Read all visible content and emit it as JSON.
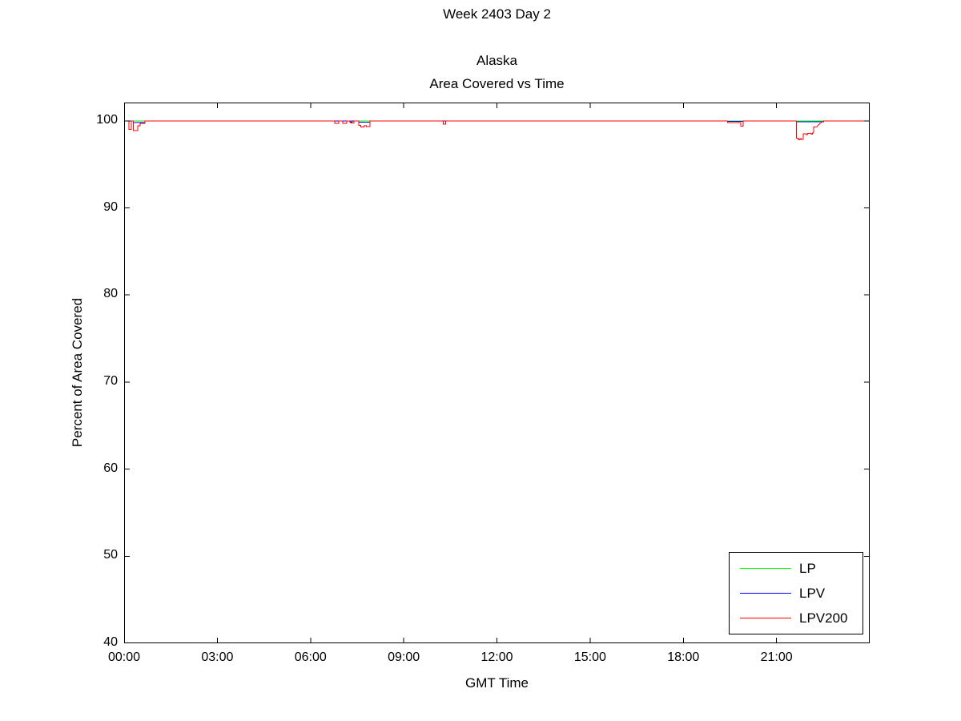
{
  "figure": {
    "title": "Week 2403 Day 2",
    "subtitle_line1": "Alaska",
    "subtitle_line2": "Area Covered vs Time",
    "xlabel": "GMT Time",
    "ylabel": "Percent of Area Covered"
  },
  "chart_data": {
    "type": "line",
    "title": "Week 2403 Day 2 — Alaska — Area Covered vs Time",
    "xlabel": "GMT Time",
    "ylabel": "Percent of Area Covered",
    "x_unit": "hours_gmt",
    "xlim": [
      0,
      24
    ],
    "ylim": [
      40,
      102.1
    ],
    "grid": false,
    "background": "#ffffff",
    "axis_color": "#000000",
    "legend_position": "bottom-right-inside",
    "x_ticks": [
      {
        "h": 0,
        "label": "00:00"
      },
      {
        "h": 3,
        "label": "03:00"
      },
      {
        "h": 6,
        "label": "06:00"
      },
      {
        "h": 9,
        "label": "09:00"
      },
      {
        "h": 12,
        "label": "12:00"
      },
      {
        "h": 15,
        "label": "15:00"
      },
      {
        "h": 18,
        "label": "18:00"
      },
      {
        "h": 21,
        "label": "21:00"
      }
    ],
    "y_ticks": [
      {
        "v": 40,
        "label": "40"
      },
      {
        "v": 50,
        "label": "50"
      },
      {
        "v": 60,
        "label": "60"
      },
      {
        "v": 70,
        "label": "70"
      },
      {
        "v": 80,
        "label": "80"
      },
      {
        "v": 90,
        "label": "90"
      },
      {
        "v": 100,
        "label": "100"
      }
    ],
    "series": [
      {
        "name": "LP",
        "color": "#00ff00",
        "points": [
          [
            0,
            100
          ],
          [
            24,
            100
          ]
        ]
      },
      {
        "name": "LPV",
        "color": "#0000ff",
        "points": [
          [
            0,
            100
          ],
          [
            0.29,
            100
          ],
          [
            0.29,
            99.8
          ],
          [
            0.67,
            99.8
          ],
          [
            0.67,
            100
          ],
          [
            7.27,
            100
          ],
          [
            7.27,
            99.85
          ],
          [
            7.33,
            99.85
          ],
          [
            7.33,
            100
          ],
          [
            7.55,
            100
          ],
          [
            7.55,
            99.85
          ],
          [
            7.92,
            99.85
          ],
          [
            7.92,
            100
          ],
          [
            19.43,
            100
          ],
          [
            19.43,
            99.92
          ],
          [
            19.93,
            99.92
          ],
          [
            19.93,
            100
          ],
          [
            21.64,
            100
          ],
          [
            21.64,
            99.9
          ],
          [
            22.52,
            99.9
          ],
          [
            22.52,
            100
          ],
          [
            24,
            100
          ]
        ]
      },
      {
        "name": "LPV200",
        "color": "#ff0000",
        "points": [
          [
            0,
            100
          ],
          [
            0.15,
            100
          ],
          [
            0.15,
            99.0
          ],
          [
            0.23,
            99.0
          ],
          [
            0.23,
            100
          ],
          [
            0.29,
            100
          ],
          [
            0.29,
            98.9
          ],
          [
            0.44,
            98.9
          ],
          [
            0.44,
            99.45
          ],
          [
            0.52,
            99.45
          ],
          [
            0.52,
            99.7
          ],
          [
            0.67,
            99.7
          ],
          [
            0.67,
            100
          ],
          [
            6.78,
            100
          ],
          [
            6.78,
            99.7
          ],
          [
            6.91,
            99.7
          ],
          [
            6.91,
            100
          ],
          [
            7.04,
            100
          ],
          [
            7.04,
            99.7
          ],
          [
            7.17,
            99.7
          ],
          [
            7.17,
            100
          ],
          [
            7.3,
            100
          ],
          [
            7.3,
            99.75
          ],
          [
            7.4,
            99.75
          ],
          [
            7.4,
            100
          ],
          [
            7.55,
            100
          ],
          [
            7.55,
            99.5
          ],
          [
            7.62,
            99.5
          ],
          [
            7.62,
            99.3
          ],
          [
            7.72,
            99.3
          ],
          [
            7.72,
            99.45
          ],
          [
            7.8,
            99.45
          ],
          [
            7.8,
            99.35
          ],
          [
            7.92,
            99.35
          ],
          [
            7.92,
            100
          ],
          [
            10.27,
            100
          ],
          [
            10.27,
            99.6
          ],
          [
            10.35,
            99.6
          ],
          [
            10.35,
            100
          ],
          [
            19.43,
            100
          ],
          [
            19.43,
            99.8
          ],
          [
            19.85,
            99.8
          ],
          [
            19.85,
            99.4
          ],
          [
            19.93,
            99.4
          ],
          [
            19.93,
            100
          ],
          [
            21.64,
            100
          ],
          [
            21.64,
            98.0
          ],
          [
            21.7,
            98.0
          ],
          [
            21.7,
            97.8
          ],
          [
            21.76,
            97.8
          ],
          [
            21.76,
            97.95
          ],
          [
            21.8,
            97.95
          ],
          [
            21.8,
            97.85
          ],
          [
            21.86,
            97.85
          ],
          [
            21.86,
            98.5
          ],
          [
            21.95,
            98.5
          ],
          [
            21.95,
            98.4
          ],
          [
            22.0,
            98.4
          ],
          [
            22.0,
            98.55
          ],
          [
            22.12,
            98.55
          ],
          [
            22.12,
            98.45
          ],
          [
            22.16,
            98.45
          ],
          [
            22.16,
            98.6
          ],
          [
            22.2,
            98.6
          ],
          [
            22.2,
            99.3
          ],
          [
            22.3,
            99.3
          ],
          [
            22.34,
            99.5
          ],
          [
            22.42,
            99.75
          ],
          [
            22.52,
            100
          ],
          [
            24,
            100
          ]
        ]
      }
    ]
  },
  "legend": {
    "entries": [
      {
        "label": "LP",
        "color": "#00ff00"
      },
      {
        "label": "LPV",
        "color": "#0000ff"
      },
      {
        "label": "LPV200",
        "color": "#ff0000"
      }
    ]
  }
}
